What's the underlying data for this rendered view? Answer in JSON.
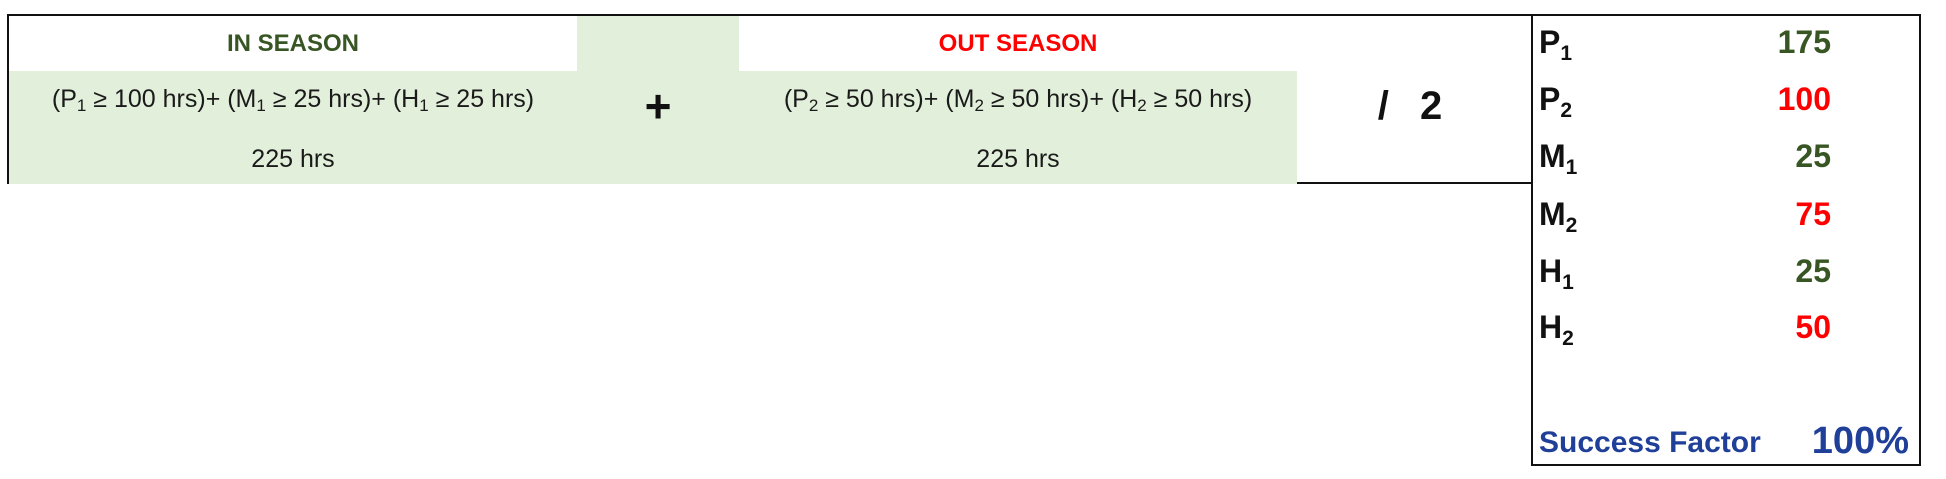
{
  "formula": {
    "in_season": {
      "header": "IN SEASON",
      "header_color": "#375623",
      "terms": [
        {
          "open": "(P",
          "sub": "1",
          "cond": " ≥ 100 hrs)"
        },
        {
          "open": " + (M",
          "sub": "1",
          "cond": " ≥ 25 hrs)"
        },
        {
          "open": " + (H",
          "sub": "1",
          "cond": " ≥ 25 hrs)"
        }
      ],
      "total": "225 hrs"
    },
    "operator": "+",
    "out_season": {
      "header": "OUT SEASON",
      "header_color": "#ff0000",
      "terms": [
        {
          "open": "(P",
          "sub": "2",
          "cond": " ≥ 50 hrs)"
        },
        {
          "open": " + (M",
          "sub": "2",
          "cond": " ≥ 50 hrs)"
        },
        {
          "open": " + (H",
          "sub": "2",
          "cond": " ≥ 50 hrs)"
        }
      ],
      "total": "225 hrs"
    },
    "divisor": "/ 2",
    "band_color": "#e2efda"
  },
  "values": [
    {
      "letter": "P",
      "sub": "1",
      "value": "175",
      "color": "#375623"
    },
    {
      "letter": "P",
      "sub": "2",
      "value": "100",
      "color": "#ff0000"
    },
    {
      "letter": "M",
      "sub": "1",
      "value": "25",
      "color": "#375623"
    },
    {
      "letter": "M",
      "sub": "2",
      "value": "75",
      "color": "#ff0000"
    },
    {
      "letter": "H",
      "sub": "1",
      "value": "25",
      "color": "#375623"
    },
    {
      "letter": "H",
      "sub": "2",
      "value": "50",
      "color": "#ff0000"
    }
  ],
  "success_factor": {
    "label": "Success Factor",
    "value": "100%",
    "color": "#1f3f99"
  }
}
